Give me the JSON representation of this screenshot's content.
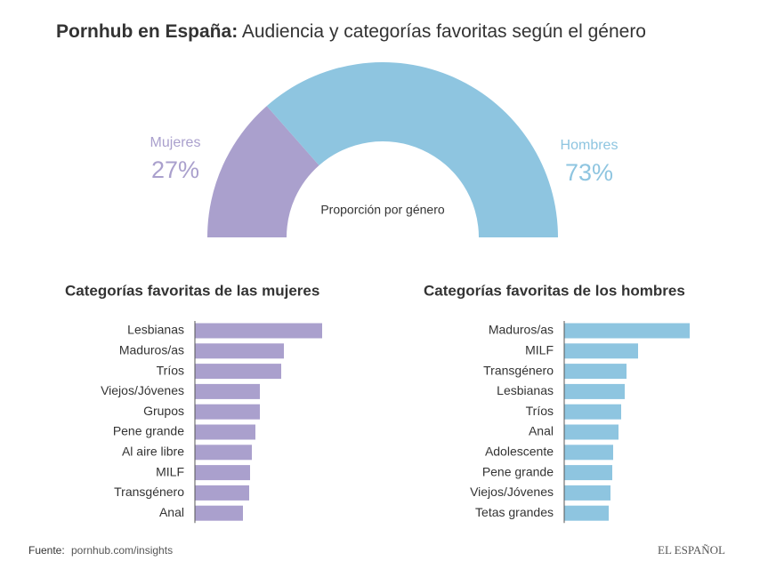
{
  "title_lead": "Pornhub en España:",
  "title": "Audiencia y categorías favoritas según el género",
  "source_label": "Fuente:",
  "source": "pornhub.com/insights",
  "brand": "EL ESPAÑOL",
  "chart_data": [
    {
      "type": "pie",
      "semicircle": true,
      "label": "Proporción por género",
      "categories": [
        "Mujeres",
        "Hombres"
      ],
      "values": [
        27,
        73
      ],
      "value_labels": [
        "27%",
        "73%"
      ],
      "colors": [
        "#aaa0cd",
        "#8ec5e0"
      ]
    },
    {
      "type": "bar",
      "orientation": "horizontal",
      "title": "Categorías favoritas de las mujeres",
      "categories": [
        "Lesbianas",
        "Maduros/as",
        "Tríos",
        "Viejos/Jóvenes",
        "Grupos",
        "Pene grande",
        "Al aire libre",
        "MILF",
        "Transgénero",
        "Anal"
      ],
      "values": [
        143,
        100,
        97,
        73,
        73,
        68,
        64,
        62,
        61,
        54
      ],
      "color": "#aaa0cd"
    },
    {
      "type": "bar",
      "orientation": "horizontal",
      "title": "Categorías favoritas de los hombres",
      "categories": [
        "Maduros/as",
        "MILF",
        "Transgénero",
        "Lesbianas",
        "Tríos",
        "Anal",
        "Adolescente",
        "Pene grande",
        "Viejos/Jóvenes",
        "Tetas grandes"
      ],
      "values": [
        141,
        83,
        70,
        68,
        64,
        61,
        55,
        54,
        52,
        50
      ],
      "color": "#8ec5e0"
    }
  ]
}
